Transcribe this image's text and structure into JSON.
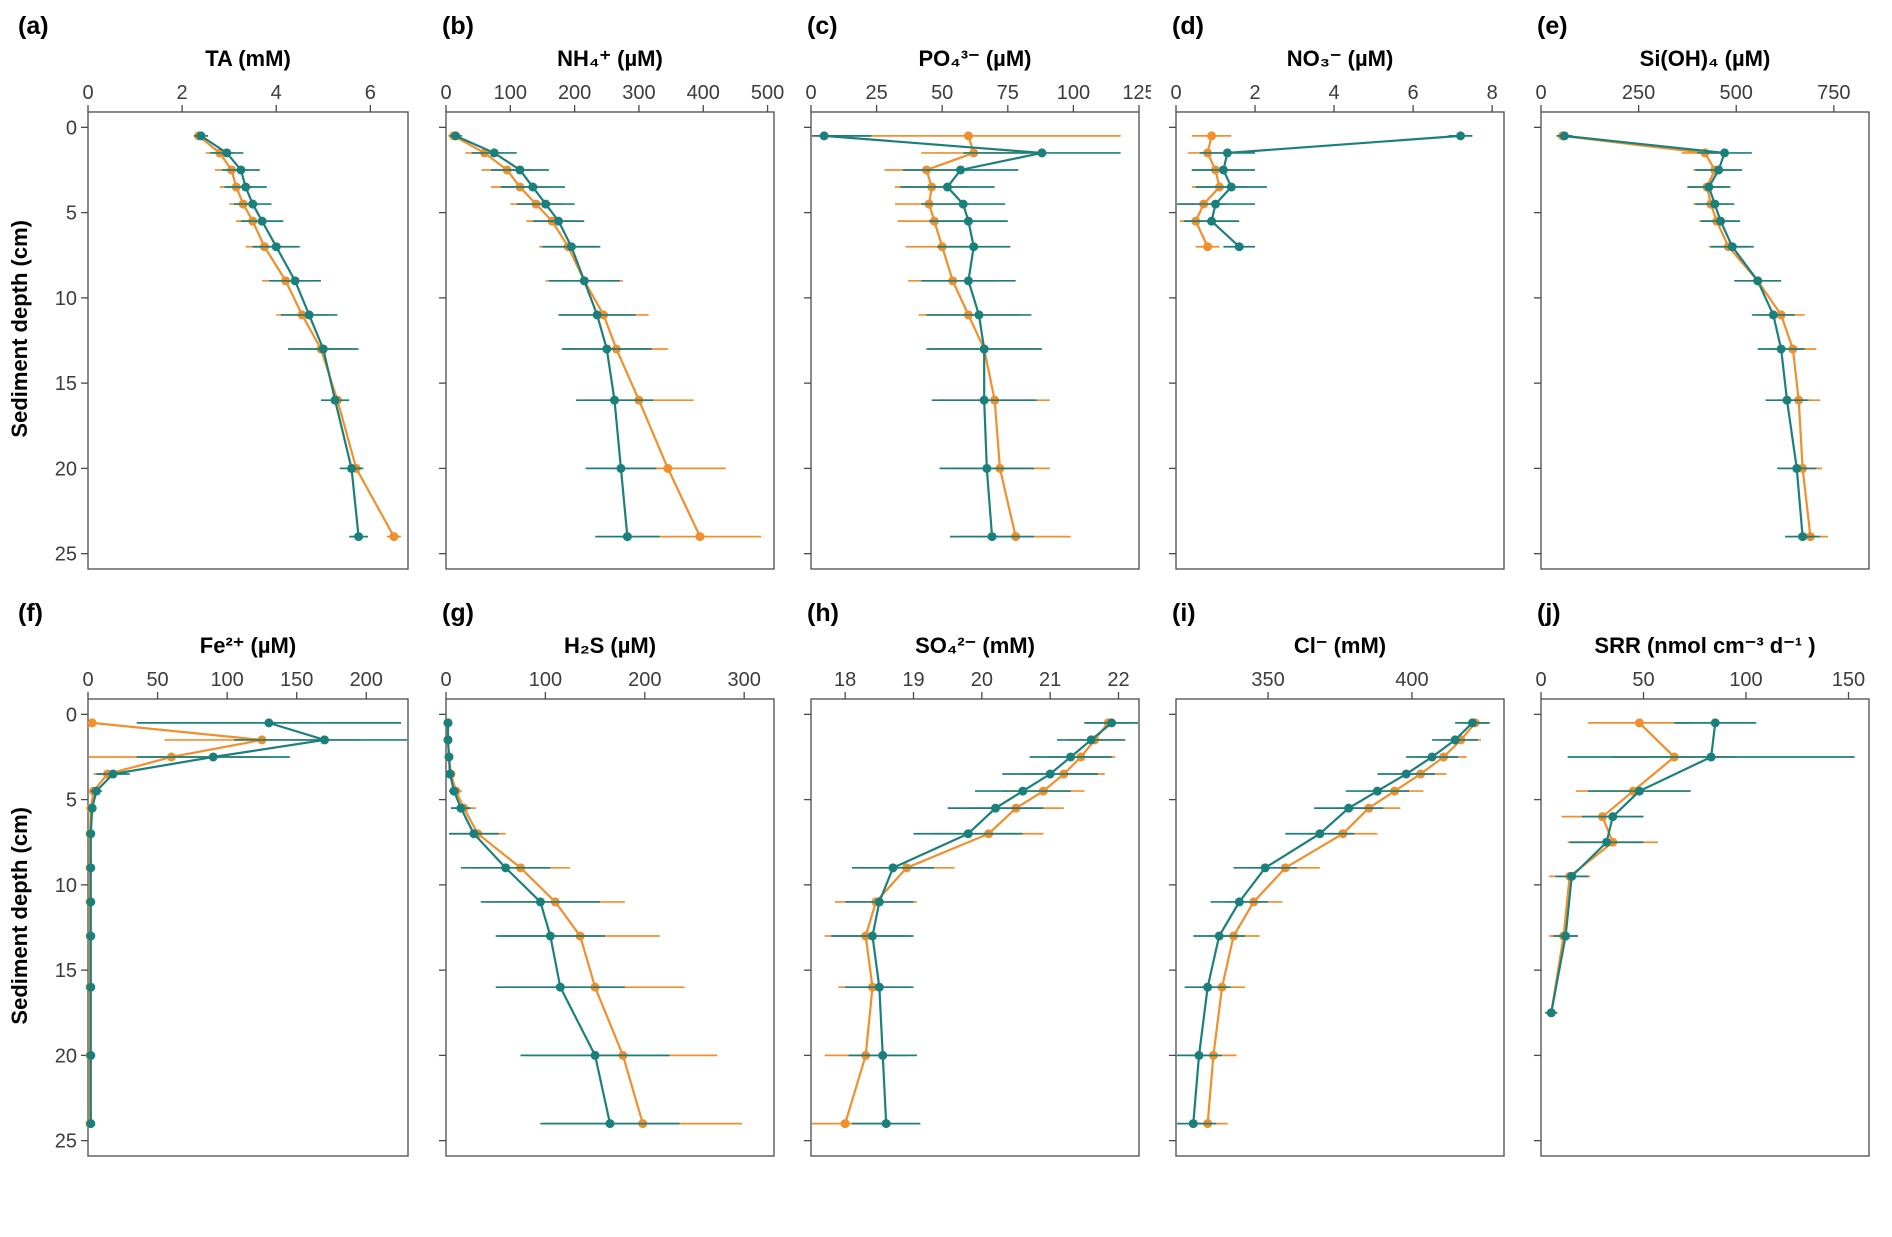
{
  "style": {
    "axis_color": "#4a4a4a",
    "tick_text_color": "#3c3c3c",
    "background": "#ffffff"
  },
  "colors": {
    "teal": "#1b807c",
    "orange": "#f28e2b"
  },
  "y_axis": {
    "label": "Sediment depth (cm)",
    "ticks": [
      0,
      5,
      10,
      15,
      20,
      25
    ],
    "min": 0,
    "max": 25
  },
  "chart_data": [
    {
      "type": "scatter",
      "panel_label": "(a)",
      "title": "TA (mM)",
      "x_min": 0,
      "x_max": 6.8,
      "x_ticks": [
        0,
        2,
        4,
        6
      ],
      "show_y_labels": true,
      "depths": [
        0.5,
        1.5,
        2.5,
        3.5,
        4.5,
        5.5,
        7,
        9,
        11,
        13,
        16,
        20,
        24
      ],
      "series": [
        {
          "name": "orange-profile",
          "color_key": "orange",
          "values": [
            2.35,
            2.8,
            3.05,
            3.15,
            3.3,
            3.5,
            3.75,
            4.2,
            4.55,
            4.95,
            5.3,
            5.7,
            6.5
          ],
          "errors": [
            0.1,
            0.3,
            0.35,
            0.35,
            0.3,
            0.35,
            0.4,
            0.5,
            0.55,
            0.65,
            0.1,
            0.1,
            0.15
          ]
        },
        {
          "name": "teal-profile",
          "color_key": "teal",
          "values": [
            2.4,
            2.95,
            3.25,
            3.35,
            3.5,
            3.7,
            4.0,
            4.4,
            4.7,
            5.0,
            5.25,
            5.6,
            5.75
          ],
          "errors": [
            0.15,
            0.35,
            0.4,
            0.45,
            0.4,
            0.45,
            0.5,
            0.55,
            0.6,
            0.75,
            0.3,
            0.25,
            0.2
          ]
        }
      ]
    },
    {
      "type": "scatter",
      "panel_label": "(b)",
      "title": "NH₄⁺ (µM)",
      "x_min": 0,
      "x_max": 510,
      "x_ticks": [
        0,
        100,
        200,
        300,
        400,
        500
      ],
      "show_y_labels": false,
      "depths": [
        0.5,
        1.5,
        2.5,
        3.5,
        4.5,
        5.5,
        7,
        9,
        11,
        13,
        16,
        20,
        24
      ],
      "series": [
        {
          "name": "orange-profile",
          "color_key": "orange",
          "values": [
            12,
            60,
            95,
            115,
            140,
            165,
            190,
            215,
            245,
            265,
            300,
            345,
            395
          ],
          "errors": [
            8,
            30,
            40,
            45,
            40,
            40,
            45,
            60,
            70,
            80,
            85,
            90,
            95
          ]
        },
        {
          "name": "teal-profile",
          "color_key": "teal",
          "values": [
            15,
            75,
            115,
            135,
            155,
            175,
            195,
            215,
            235,
            250,
            262,
            272,
            282
          ],
          "errors": [
            10,
            35,
            45,
            50,
            45,
            40,
            45,
            55,
            60,
            70,
            60,
            55,
            50
          ]
        }
      ]
    },
    {
      "type": "scatter",
      "panel_label": "(c)",
      "title": "PO₄³⁻ (µM)",
      "x_min": 0,
      "x_max": 125,
      "x_ticks": [
        0,
        25,
        50,
        75,
        100,
        125
      ],
      "show_y_labels": false,
      "depths": [
        0.5,
        1.5,
        2.5,
        3.5,
        4.5,
        5.5,
        7,
        9,
        11,
        13,
        16,
        20,
        24
      ],
      "series": [
        {
          "name": "orange-profile",
          "color_key": "orange",
          "values": [
            60,
            62,
            44,
            46,
            45,
            47,
            50,
            54,
            60,
            66,
            70,
            72,
            78
          ],
          "errors": [
            58,
            20,
            16,
            14,
            13,
            14,
            14,
            17,
            19,
            21,
            21,
            19,
            21
          ]
        },
        {
          "name": "teal-profile",
          "color_key": "teal",
          "values": [
            5,
            88,
            57,
            52,
            58,
            60,
            62,
            60,
            64,
            66,
            66,
            67,
            69
          ],
          "errors": [
            18,
            30,
            22,
            18,
            16,
            15,
            14,
            18,
            20,
            22,
            20,
            18,
            16
          ]
        }
      ]
    },
    {
      "type": "scatter",
      "panel_label": "(d)",
      "title": "NO₃⁻ (µM)",
      "x_min": 0,
      "x_max": 8.3,
      "x_ticks": [
        0,
        2,
        4,
        6,
        8
      ],
      "show_y_labels": false,
      "depths": [
        0.5,
        1.5,
        2.5,
        3.5,
        4.5,
        5.5,
        7
      ],
      "series": [
        {
          "name": "orange-profile",
          "color_key": "orange",
          "values": [
            0.9,
            0.8,
            1.0,
            1.1,
            0.7,
            0.5,
            0.8
          ],
          "errors": [
            0.5,
            0.5,
            0.6,
            0.7,
            0.6,
            0.4,
            0.3
          ]
        },
        {
          "name": "teal-profile",
          "color_key": "teal",
          "values": [
            7.2,
            1.3,
            1.2,
            1.4,
            1.0,
            0.9,
            1.6
          ],
          "errors": [
            0.3,
            0.7,
            0.8,
            0.9,
            1.0,
            0.7,
            0.4
          ]
        }
      ]
    },
    {
      "type": "scatter",
      "panel_label": "(e)",
      "title": "Si(OH)₄ (µM)",
      "x_min": 0,
      "x_max": 840,
      "x_ticks": [
        0,
        250,
        500,
        750
      ],
      "show_y_labels": false,
      "depths": [
        0.5,
        1.5,
        2.5,
        3.5,
        4.5,
        5.5,
        7,
        9,
        11,
        13,
        16,
        20,
        24
      ],
      "series": [
        {
          "name": "orange-profile",
          "color_key": "orange",
          "values": [
            55,
            420,
            445,
            425,
            435,
            450,
            480,
            555,
            615,
            645,
            660,
            670,
            690
          ],
          "errors": [
            15,
            60,
            55,
            50,
            45,
            45,
            50,
            55,
            60,
            60,
            55,
            50,
            45
          ]
        },
        {
          "name": "teal-profile",
          "color_key": "teal",
          "values": [
            60,
            470,
            455,
            430,
            445,
            460,
            490,
            555,
            595,
            615,
            630,
            655,
            670
          ],
          "errors": [
            20,
            70,
            60,
            55,
            50,
            50,
            55,
            60,
            55,
            60,
            55,
            50,
            45
          ]
        }
      ]
    },
    {
      "type": "scatter",
      "panel_label": "(f)",
      "title": "Fe²⁺ (µM)",
      "x_min": 0,
      "x_max": 230,
      "x_ticks": [
        0,
        50,
        100,
        150,
        200
      ],
      "show_y_labels": true,
      "depths": [
        0.5,
        1.5,
        2.5,
        3.5,
        4.5,
        5.5,
        7,
        9,
        11,
        13,
        16,
        20,
        24
      ],
      "series": [
        {
          "name": "orange-profile",
          "color_key": "orange",
          "values": [
            3,
            125,
            60,
            14,
            4,
            2,
            1.5,
            1.5,
            1.5,
            1.5,
            1.5,
            1.5,
            1.5
          ],
          "errors": [
            2,
            70,
            70,
            10,
            3,
            1.5,
            1,
            1,
            1,
            1,
            1,
            1,
            1
          ]
        },
        {
          "name": "teal-profile",
          "color_key": "teal",
          "values": [
            130,
            170,
            90,
            18,
            6,
            3,
            2,
            2,
            2,
            2,
            2,
            2,
            2
          ],
          "errors": [
            95,
            65,
            55,
            12,
            4,
            2,
            1,
            1,
            1,
            1,
            1,
            1,
            1
          ]
        }
      ]
    },
    {
      "type": "scatter",
      "panel_label": "(g)",
      "title": "H₂S (µM)",
      "x_min": 0,
      "x_max": 330,
      "x_ticks": [
        0,
        100,
        200,
        300
      ],
      "show_y_labels": false,
      "depths": [
        0.5,
        1.5,
        2.5,
        3.5,
        4.5,
        5.5,
        7,
        9,
        11,
        13,
        16,
        20,
        24
      ],
      "series": [
        {
          "name": "orange-profile",
          "color_key": "orange",
          "values": [
            2,
            2,
            3,
            5,
            10,
            18,
            32,
            75,
            110,
            135,
            150,
            178,
            198
          ],
          "errors": [
            1,
            1,
            2,
            3,
            6,
            12,
            28,
            50,
            70,
            80,
            90,
            95,
            100
          ]
        },
        {
          "name": "teal-profile",
          "color_key": "teal",
          "values": [
            2,
            2,
            3,
            4,
            8,
            15,
            28,
            60,
            95,
            105,
            115,
            150,
            165
          ],
          "errors": [
            1,
            1,
            2,
            3,
            5,
            10,
            25,
            45,
            60,
            55,
            65,
            75,
            70
          ]
        }
      ]
    },
    {
      "type": "scatter",
      "panel_label": "(h)",
      "title": "SO₄²⁻ (mM)",
      "x_min": 17.5,
      "x_max": 22.3,
      "x_ticks": [
        18,
        19,
        20,
        21,
        22
      ],
      "show_y_labels": false,
      "depths": [
        0.5,
        1.5,
        2.5,
        3.5,
        4.5,
        5.5,
        7,
        9,
        11,
        13,
        16,
        20,
        24
      ],
      "series": [
        {
          "name": "orange-profile",
          "color_key": "orange",
          "values": [
            21.85,
            21.65,
            21.45,
            21.2,
            20.9,
            20.5,
            20.1,
            18.9,
            18.45,
            18.3,
            18.4,
            18.3,
            18.0
          ],
          "errors": [
            0.35,
            0.4,
            0.5,
            0.6,
            0.6,
            0.7,
            0.8,
            0.7,
            0.6,
            0.6,
            0.5,
            0.6,
            0.7
          ]
        },
        {
          "name": "teal-profile",
          "color_key": "teal",
          "values": [
            21.9,
            21.6,
            21.3,
            21.0,
            20.6,
            20.2,
            19.8,
            18.7,
            18.5,
            18.4,
            18.5,
            18.55,
            18.6
          ],
          "errors": [
            0.4,
            0.5,
            0.6,
            0.7,
            0.7,
            0.7,
            0.8,
            0.6,
            0.5,
            0.6,
            0.5,
            0.5,
            0.5
          ]
        }
      ]
    },
    {
      "type": "scatter",
      "panel_label": "(i)",
      "title": "Cl⁻ (mM)",
      "x_min": 318,
      "x_max": 432,
      "x_ticks": [
        350,
        400
      ],
      "show_y_labels": false,
      "depths": [
        0.5,
        1.5,
        2.5,
        3.5,
        4.5,
        5.5,
        7,
        9,
        11,
        13,
        16,
        20,
        24
      ],
      "series": [
        {
          "name": "orange-profile",
          "color_key": "orange",
          "values": [
            422,
            417,
            411,
            403,
            394,
            385,
            376,
            356,
            345,
            338,
            334,
            331,
            329
          ],
          "errors": [
            5,
            7,
            8,
            9,
            10,
            11,
            12,
            12,
            10,
            9,
            8,
            8,
            7
          ]
        },
        {
          "name": "teal-profile",
          "color_key": "teal",
          "values": [
            421,
            415,
            407,
            398,
            388,
            378,
            368,
            349,
            340,
            333,
            329,
            326,
            324
          ],
          "errors": [
            6,
            8,
            9,
            10,
            11,
            12,
            12,
            11,
            10,
            9,
            8,
            8,
            8
          ]
        }
      ]
    },
    {
      "type": "scatter",
      "panel_label": "(j)",
      "title": "SRR (nmol cm⁻³ d⁻¹ )",
      "x_min": 0,
      "x_max": 160,
      "x_ticks": [
        0,
        50,
        100,
        150
      ],
      "show_y_labels": false,
      "depths": [
        0.5,
        2.5,
        4.5,
        6,
        7.5,
        9.5,
        13,
        17.5
      ],
      "series": [
        {
          "name": "orange-profile",
          "color_key": "orange",
          "values": [
            48,
            65,
            45,
            30,
            35,
            14,
            11,
            5
          ],
          "errors": [
            25,
            30,
            28,
            20,
            22,
            10,
            7,
            3
          ]
        },
        {
          "name": "teal-profile",
          "color_key": "teal",
          "values": [
            85,
            83,
            48,
            35,
            32,
            15,
            12,
            5
          ],
          "errors": [
            20,
            70,
            25,
            15,
            18,
            8,
            6,
            3
          ]
        }
      ]
    }
  ]
}
